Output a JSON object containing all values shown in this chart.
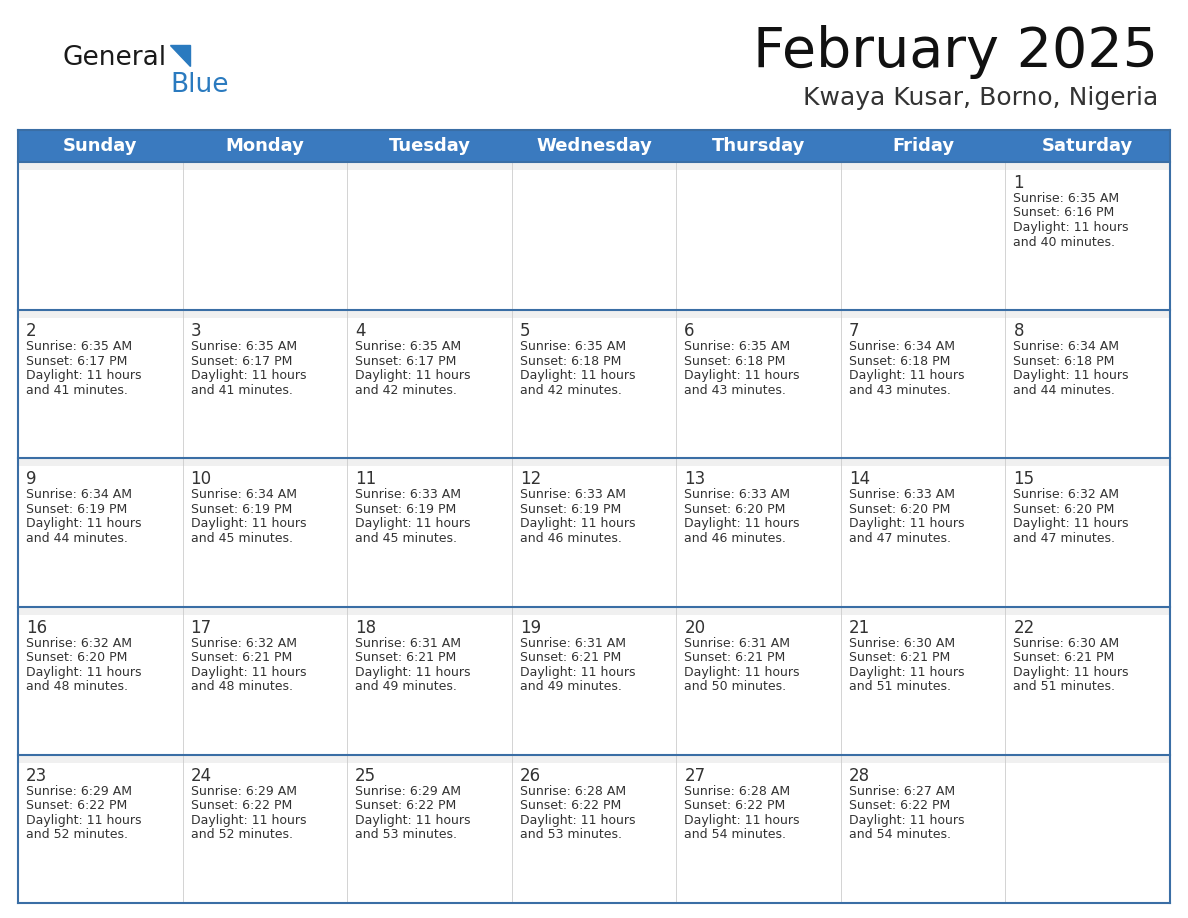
{
  "title": "February 2025",
  "subtitle": "Kwaya Kusar, Borno, Nigeria",
  "days_of_week": [
    "Sunday",
    "Monday",
    "Tuesday",
    "Wednesday",
    "Thursday",
    "Friday",
    "Saturday"
  ],
  "header_bg": "#3a7abf",
  "header_text": "#ffffff",
  "cell_bg": "#f0f0f0",
  "cell_bg_white": "#ffffff",
  "day_number_color": "#333333",
  "text_color": "#333333",
  "line_color": "#3a6ea5",
  "calendar_data": [
    [
      {
        "day": null,
        "sunrise": null,
        "sunset": null,
        "daylight": null
      },
      {
        "day": null,
        "sunrise": null,
        "sunset": null,
        "daylight": null
      },
      {
        "day": null,
        "sunrise": null,
        "sunset": null,
        "daylight": null
      },
      {
        "day": null,
        "sunrise": null,
        "sunset": null,
        "daylight": null
      },
      {
        "day": null,
        "sunrise": null,
        "sunset": null,
        "daylight": null
      },
      {
        "day": null,
        "sunrise": null,
        "sunset": null,
        "daylight": null
      },
      {
        "day": 1,
        "sunrise": "6:35 AM",
        "sunset": "6:16 PM",
        "daylight": "11 hours and 40 minutes."
      }
    ],
    [
      {
        "day": 2,
        "sunrise": "6:35 AM",
        "sunset": "6:17 PM",
        "daylight": "11 hours and 41 minutes."
      },
      {
        "day": 3,
        "sunrise": "6:35 AM",
        "sunset": "6:17 PM",
        "daylight": "11 hours and 41 minutes."
      },
      {
        "day": 4,
        "sunrise": "6:35 AM",
        "sunset": "6:17 PM",
        "daylight": "11 hours and 42 minutes."
      },
      {
        "day": 5,
        "sunrise": "6:35 AM",
        "sunset": "6:18 PM",
        "daylight": "11 hours and 42 minutes."
      },
      {
        "day": 6,
        "sunrise": "6:35 AM",
        "sunset": "6:18 PM",
        "daylight": "11 hours and 43 minutes."
      },
      {
        "day": 7,
        "sunrise": "6:34 AM",
        "sunset": "6:18 PM",
        "daylight": "11 hours and 43 minutes."
      },
      {
        "day": 8,
        "sunrise": "6:34 AM",
        "sunset": "6:18 PM",
        "daylight": "11 hours and 44 minutes."
      }
    ],
    [
      {
        "day": 9,
        "sunrise": "6:34 AM",
        "sunset": "6:19 PM",
        "daylight": "11 hours and 44 minutes."
      },
      {
        "day": 10,
        "sunrise": "6:34 AM",
        "sunset": "6:19 PM",
        "daylight": "11 hours and 45 minutes."
      },
      {
        "day": 11,
        "sunrise": "6:33 AM",
        "sunset": "6:19 PM",
        "daylight": "11 hours and 45 minutes."
      },
      {
        "day": 12,
        "sunrise": "6:33 AM",
        "sunset": "6:19 PM",
        "daylight": "11 hours and 46 minutes."
      },
      {
        "day": 13,
        "sunrise": "6:33 AM",
        "sunset": "6:20 PM",
        "daylight": "11 hours and 46 minutes."
      },
      {
        "day": 14,
        "sunrise": "6:33 AM",
        "sunset": "6:20 PM",
        "daylight": "11 hours and 47 minutes."
      },
      {
        "day": 15,
        "sunrise": "6:32 AM",
        "sunset": "6:20 PM",
        "daylight": "11 hours and 47 minutes."
      }
    ],
    [
      {
        "day": 16,
        "sunrise": "6:32 AM",
        "sunset": "6:20 PM",
        "daylight": "11 hours and 48 minutes."
      },
      {
        "day": 17,
        "sunrise": "6:32 AM",
        "sunset": "6:21 PM",
        "daylight": "11 hours and 48 minutes."
      },
      {
        "day": 18,
        "sunrise": "6:31 AM",
        "sunset": "6:21 PM",
        "daylight": "11 hours and 49 minutes."
      },
      {
        "day": 19,
        "sunrise": "6:31 AM",
        "sunset": "6:21 PM",
        "daylight": "11 hours and 49 minutes."
      },
      {
        "day": 20,
        "sunrise": "6:31 AM",
        "sunset": "6:21 PM",
        "daylight": "11 hours and 50 minutes."
      },
      {
        "day": 21,
        "sunrise": "6:30 AM",
        "sunset": "6:21 PM",
        "daylight": "11 hours and 51 minutes."
      },
      {
        "day": 22,
        "sunrise": "6:30 AM",
        "sunset": "6:21 PM",
        "daylight": "11 hours and 51 minutes."
      }
    ],
    [
      {
        "day": 23,
        "sunrise": "6:29 AM",
        "sunset": "6:22 PM",
        "daylight": "11 hours and 52 minutes."
      },
      {
        "day": 24,
        "sunrise": "6:29 AM",
        "sunset": "6:22 PM",
        "daylight": "11 hours and 52 minutes."
      },
      {
        "day": 25,
        "sunrise": "6:29 AM",
        "sunset": "6:22 PM",
        "daylight": "11 hours and 53 minutes."
      },
      {
        "day": 26,
        "sunrise": "6:28 AM",
        "sunset": "6:22 PM",
        "daylight": "11 hours and 53 minutes."
      },
      {
        "day": 27,
        "sunrise": "6:28 AM",
        "sunset": "6:22 PM",
        "daylight": "11 hours and 54 minutes."
      },
      {
        "day": 28,
        "sunrise": "6:27 AM",
        "sunset": "6:22 PM",
        "daylight": "11 hours and 54 minutes."
      },
      {
        "day": null,
        "sunrise": null,
        "sunset": null,
        "daylight": null
      }
    ]
  ],
  "logo_general_color": "#1a1a1a",
  "logo_blue_color": "#2a7abf",
  "logo_triangle_color": "#2a7abf",
  "title_fontsize": 40,
  "subtitle_fontsize": 18,
  "header_fontsize": 13,
  "day_num_fontsize": 12,
  "cell_text_fontsize": 9
}
